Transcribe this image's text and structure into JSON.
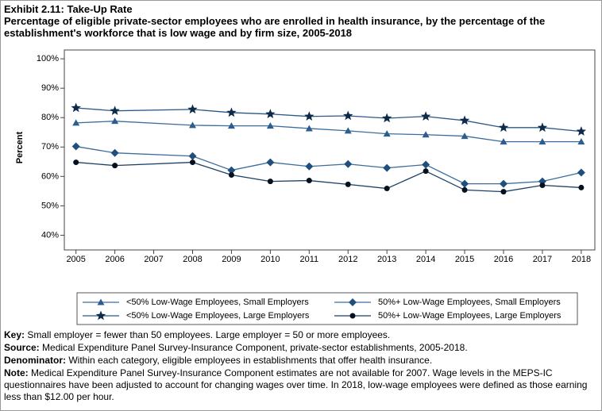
{
  "header": {
    "title": "Exhibit 2.11: Take-Up Rate",
    "subtitle": "Percentage of eligible private-sector employees who are enrolled in health insurance, by the percentage of the establishment's workforce that is low wage and by firm size, 2005-2018"
  },
  "chart_data": {
    "type": "line",
    "y_label": "Percent",
    "x": [
      2005,
      2006,
      2008,
      2009,
      2010,
      2011,
      2012,
      2013,
      2014,
      2015,
      2016,
      2017,
      2018
    ],
    "xlim": [
      2004.7,
      2018.35
    ],
    "xticks": [
      2005,
      2006,
      2007,
      2008,
      2009,
      2010,
      2011,
      2012,
      2013,
      2014,
      2015,
      2016,
      2017,
      2018
    ],
    "ylim": [
      35,
      103
    ],
    "yticks": [
      {
        "value": 40,
        "label": "40%"
      },
      {
        "value": 50,
        "label": "50%"
      },
      {
        "value": 60,
        "label": "60%"
      },
      {
        "value": 70,
        "label": "70%"
      },
      {
        "value": 80,
        "label": "80%"
      },
      {
        "value": 90,
        "label": "90%"
      },
      {
        "value": 100,
        "label": "100%"
      }
    ],
    "series": [
      {
        "name": "<50% Low-Wage Employees, Small Employers",
        "color": "#3b6d9c",
        "marker": "triangle",
        "marker_color": "#2c5d8c",
        "values": [
          78.2,
          78.8,
          77.4,
          77.2,
          77.2,
          76.3,
          75.5,
          74.5,
          74.2,
          73.7,
          71.8,
          71.8,
          71.8
        ]
      },
      {
        "name": "50%+ Low-Wage Employees, Small Employers",
        "color": "#3b6d9c",
        "marker": "diamond",
        "marker_color": "#1f4f7c",
        "values": [
          70.2,
          68.0,
          66.9,
          62.1,
          64.8,
          63.4,
          64.2,
          62.9,
          64.0,
          57.5,
          57.5,
          58.3,
          61.3
        ]
      },
      {
        "name": "<50% Low-Wage Employees, Large Employers",
        "color": "#2a5888",
        "marker": "star",
        "marker_color": "#0d2a48",
        "values": [
          83.3,
          82.3,
          82.8,
          81.7,
          81.2,
          80.4,
          80.6,
          79.8,
          80.4,
          79.0,
          76.6,
          76.6,
          75.3
        ]
      },
      {
        "name": "50%+ Low-Wage Employees, Large Employers",
        "color": "#1c3f64",
        "marker": "circle",
        "marker_color": "#05111f",
        "values": [
          64.8,
          63.7,
          64.8,
          60.5,
          58.3,
          58.6,
          57.3,
          55.9,
          61.8,
          55.4,
          54.8,
          57.0,
          56.2
        ]
      }
    ]
  },
  "notes": [
    {
      "label": "Key:",
      "text": "Small employer = fewer than 50 employees. Large employer = 50 or more employees."
    },
    {
      "label": "Source:",
      "text": "Medical Expenditure Panel Survey-Insurance Component, private-sector establishments, 2005-2018."
    },
    {
      "label": "Denominator:",
      "text": "Within each category, eligible employees in establishments that offer health insurance."
    },
    {
      "label": "Note:",
      "text": "Medical Expenditure Panel Survey-Insurance Component estimates are not available for 2007. Wage levels in the MEPS-IC questionnaires have been adjusted to account for changing wages over time. In 2018, low-wage employees were defined as those earning less than $12.00 per hour."
    }
  ]
}
